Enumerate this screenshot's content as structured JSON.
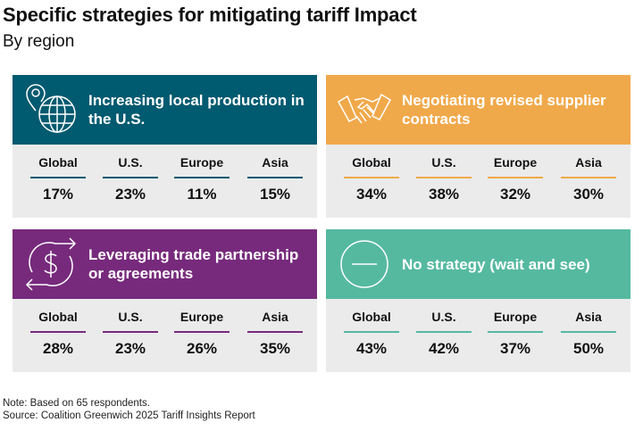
{
  "title": "Specific strategies for mitigating tariff Impact",
  "subtitle": "By region",
  "regions": [
    "Global",
    "U.S.",
    "Europe",
    "Asia"
  ],
  "cards": [
    {
      "label": "Increasing local production in the U.S.",
      "color": "#005a70",
      "icon": "globe-location-icon",
      "values": [
        "17%",
        "23%",
        "11%",
        "15%"
      ]
    },
    {
      "label": "Negotiating revised supplier contracts",
      "color": "#f0a94a",
      "icon": "handshake-icon",
      "values": [
        "34%",
        "38%",
        "32%",
        "30%"
      ]
    },
    {
      "label": "Leveraging trade partnership or agreements",
      "color": "#772a7c",
      "icon": "dollar-exchange-icon",
      "values": [
        "28%",
        "23%",
        "26%",
        "35%"
      ]
    },
    {
      "label": "No strategy (wait and see)",
      "color": "#55b9a0",
      "icon": "minus-circle-icon",
      "values": [
        "43%",
        "42%",
        "37%",
        "50%"
      ]
    }
  ],
  "chart_data": {
    "type": "table",
    "title": "Specific strategies for mitigating tariff Impact",
    "subtitle": "By region",
    "categories": [
      "Global",
      "U.S.",
      "Europe",
      "Asia"
    ],
    "series": [
      {
        "name": "Increasing local production in the U.S.",
        "values": [
          17,
          23,
          11,
          15
        ]
      },
      {
        "name": "Negotiating revised supplier contracts",
        "values": [
          34,
          38,
          32,
          30
        ]
      },
      {
        "name": "Leveraging trade partnership or agreements",
        "values": [
          28,
          23,
          26,
          35
        ]
      },
      {
        "name": "No strategy (wait and see)",
        "values": [
          43,
          42,
          37,
          50
        ]
      }
    ],
    "unit": "%"
  },
  "footer": {
    "note": "Note: Based on 65 respondents.",
    "source": "Source: Coalition Greenwich 2025 Tariff Insights Report"
  }
}
